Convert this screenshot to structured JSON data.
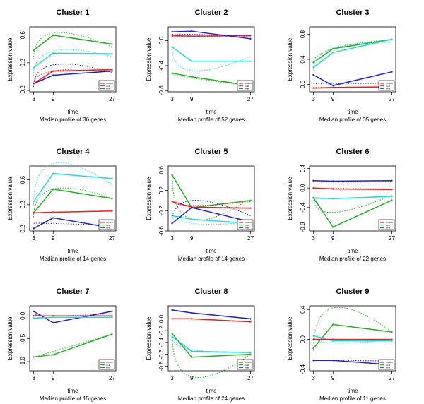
{
  "figure": {
    "x_axis_title": "time",
    "y_axis_title": "Expression value",
    "caption_prefix": "Median profile of",
    "caption_suffix": "genes",
    "legend_labels": [
      "Control",
      "Cold",
      "Heat"
    ],
    "colors": {
      "red": "#ee1c1c",
      "green": "#22b022",
      "cyan": "#22d8d8",
      "blue": "#2222cc"
    }
  },
  "chart_data": [
    {
      "type": "line",
      "title": "Cluster 1",
      "genes": 36,
      "x": [
        3,
        9,
        27
      ],
      "xlabel": "time",
      "ylabel": "Expression value",
      "ylim": [
        -0.22,
        0.72
      ],
      "yticks": [
        -0.2,
        0.2,
        0.6
      ],
      "ytick_labels": [
        "-0.2",
        "0.2",
        "0.6"
      ],
      "series": [
        {
          "color": "green",
          "values": [
            0.38,
            0.6,
            0.47
          ],
          "fit": [
            0.25,
            0.63,
            0.43
          ]
        },
        {
          "color": "cyan",
          "values": [
            0.13,
            0.34,
            0.33
          ],
          "fit": [
            0.02,
            0.37,
            0.29
          ]
        },
        {
          "color": "blue",
          "values": [
            -0.1,
            0.02,
            0.08
          ],
          "fit": [
            -0.15,
            0.17,
            0.06
          ]
        },
        {
          "color": "red",
          "values": [
            -0.1,
            0.08,
            0.1
          ],
          "fit": [
            -0.1,
            0.08,
            0.1
          ]
        }
      ]
    },
    {
      "type": "line",
      "title": "Cluster 2",
      "genes": 52,
      "x": [
        3,
        9,
        27
      ],
      "xlabel": "time",
      "ylabel": "Expression value",
      "ylim": [
        -0.82,
        0.22
      ],
      "yticks": [
        -0.8,
        -0.4,
        0.0
      ],
      "ytick_labels": [
        "-0.8",
        "-0.4",
        "0.0"
      ],
      "series": [
        {
          "color": "red",
          "values": [
            0.08,
            0.07,
            0.08
          ],
          "fit": [
            0.07,
            0.07,
            0.07
          ]
        },
        {
          "color": "blue",
          "values": [
            0.14,
            0.15,
            0.03
          ],
          "fit": [
            0.1,
            0.1,
            0.07
          ]
        },
        {
          "color": "cyan",
          "values": [
            -0.1,
            -0.33,
            -0.33
          ],
          "fit": [
            -0.1,
            -0.48,
            -0.25
          ]
        },
        {
          "color": "green",
          "values": [
            -0.52,
            -0.58,
            -0.72
          ],
          "fit": [
            -0.53,
            -0.6,
            -0.72
          ]
        }
      ]
    },
    {
      "type": "line",
      "title": "Cluster 3",
      "genes": 35,
      "x": [
        3,
        9,
        27
      ],
      "xlabel": "time",
      "ylabel": "Expression value",
      "ylim": [
        -0.12,
        0.92
      ],
      "yticks": [
        0.0,
        0.4,
        0.8
      ],
      "ytick_labels": [
        "0.0",
        "0.4",
        "0.8"
      ],
      "series": [
        {
          "color": "green",
          "values": [
            0.35,
            0.57,
            0.72
          ],
          "fit": [
            0.35,
            0.57,
            0.72
          ]
        },
        {
          "color": "cyan",
          "values": [
            0.27,
            0.51,
            0.72
          ],
          "fit": [
            0.22,
            0.58,
            0.67
          ]
        },
        {
          "color": "blue",
          "values": [
            0.15,
            -0.02,
            0.2
          ],
          "fit": [
            0.01,
            0.01,
            0.02
          ]
        },
        {
          "color": "red",
          "values": [
            -0.06,
            -0.05,
            -0.04
          ],
          "fit": [
            -0.05,
            -0.05,
            -0.05
          ]
        }
      ]
    },
    {
      "type": "line",
      "title": "Cluster 4",
      "genes": 14,
      "x": [
        3,
        9,
        27
      ],
      "xlabel": "time",
      "ylabel": "Expression value",
      "ylim": [
        -0.22,
        0.82
      ],
      "yticks": [
        -0.2,
        0.2,
        0.6
      ],
      "ytick_labels": [
        "-0.2",
        "0.2",
        "0.6"
      ],
      "series": [
        {
          "color": "cyan",
          "values": [
            0.25,
            0.7,
            0.62
          ],
          "fit": [
            0.2,
            0.86,
            0.52
          ]
        },
        {
          "color": "green",
          "values": [
            0.07,
            0.45,
            0.3
          ],
          "fit": [
            0.0,
            0.45,
            0.3
          ]
        },
        {
          "color": "red",
          "values": [
            0.07,
            0.08,
            0.1
          ],
          "fit": [
            0.07,
            0.08,
            0.1
          ]
        },
        {
          "color": "blue",
          "values": [
            -0.18,
            -0.01,
            -0.17
          ],
          "fit": [
            -0.1,
            -0.1,
            -0.13
          ]
        }
      ]
    },
    {
      "type": "line",
      "title": "Cluster 5",
      "genes": 14,
      "x": [
        3,
        9,
        27
      ],
      "xlabel": "time",
      "ylabel": "Expression value",
      "ylim": [
        -0.6,
        0.68
      ],
      "yticks": [
        -0.6,
        -0.2,
        0.2,
        0.6
      ],
      "ytick_labels": [
        "-0.6",
        "-0.2",
        "0.2",
        "0.6"
      ],
      "series": [
        {
          "color": "green",
          "values": [
            0.5,
            -0.14,
            0.0
          ],
          "fit": [
            0.5,
            -0.37,
            0.05
          ]
        },
        {
          "color": "red",
          "values": [
            -0.02,
            -0.13,
            -0.15
          ],
          "fit": [
            0.0,
            -0.1,
            -0.02
          ]
        },
        {
          "color": "cyan",
          "values": [
            -0.3,
            -0.37,
            -0.45
          ],
          "fit": [
            -0.2,
            -0.45,
            -0.42
          ]
        },
        {
          "color": "blue",
          "values": [
            -0.45,
            -0.14,
            -0.42
          ],
          "fit": [
            -0.45,
            0.0,
            -0.3
          ]
        }
      ]
    },
    {
      "type": "line",
      "title": "Cluster 6",
      "genes": 22,
      "x": [
        3,
        9,
        27
      ],
      "xlabel": "time",
      "ylabel": "Expression value",
      "ylim": [
        -0.88,
        0.45
      ],
      "yticks": [
        -0.8,
        -0.4,
        0.0,
        0.4
      ],
      "ytick_labels": [
        "-0.8",
        "-0.4",
        "0.0",
        "0.4"
      ],
      "series": [
        {
          "color": "blue",
          "values": [
            0.15,
            0.14,
            0.15
          ],
          "fit": [
            0.13,
            0.12,
            0.13
          ]
        },
        {
          "color": "red",
          "values": [
            0.0,
            -0.02,
            -0.03
          ],
          "fit": [
            -0.01,
            -0.01,
            -0.02
          ]
        },
        {
          "color": "cyan",
          "values": [
            -0.2,
            -0.22,
            -0.17
          ],
          "fit": [
            -0.2,
            -0.22,
            -0.17
          ]
        },
        {
          "color": "green",
          "values": [
            -0.2,
            -0.8,
            -0.25
          ],
          "fit": [
            -0.2,
            -0.5,
            -0.15
          ]
        }
      ]
    },
    {
      "type": "line",
      "title": "Cluster 7",
      "genes": 15,
      "x": [
        3,
        9,
        27
      ],
      "xlabel": "time",
      "ylabel": "Expression value",
      "ylim": [
        -1.2,
        0.22
      ],
      "yticks": [
        -1.0,
        -0.5,
        0.0
      ],
      "ytick_labels": [
        "-1.0",
        "-0.5",
        "0.0"
      ],
      "series": [
        {
          "color": "blue",
          "values": [
            0.1,
            -0.15,
            0.1
          ],
          "fit": [
            0.05,
            0.0,
            0.05
          ]
        },
        {
          "color": "red",
          "values": [
            0.0,
            0.0,
            0.0
          ],
          "fit": [
            0.0,
            0.0,
            0.0
          ]
        },
        {
          "color": "cyan",
          "values": [
            -0.05,
            -0.03,
            -0.03
          ],
          "fit": [
            -0.05,
            -0.03,
            -0.03
          ]
        },
        {
          "color": "green",
          "values": [
            -0.9,
            -0.85,
            -0.4
          ],
          "fit": [
            -0.9,
            -0.78,
            -0.4
          ]
        }
      ]
    },
    {
      "type": "line",
      "title": "Cluster 8",
      "genes": 24,
      "x": [
        3,
        9,
        27
      ],
      "xlabel": "time",
      "ylabel": "Expression value",
      "ylim": [
        -0.88,
        0.22
      ],
      "yticks": [
        -0.8,
        -0.6,
        -0.4,
        -0.2,
        0.0
      ],
      "ytick_labels": [
        "-0.8",
        "-0.6",
        "-0.4",
        "-0.2",
        "0.0"
      ],
      "series": [
        {
          "color": "blue",
          "values": [
            0.15,
            0.1,
            0.0
          ],
          "fit": [
            0.15,
            0.1,
            0.0
          ]
        },
        {
          "color": "red",
          "values": [
            0.0,
            0.0,
            -0.05
          ],
          "fit": [
            0.0,
            0.0,
            -0.05
          ]
        },
        {
          "color": "cyan",
          "values": [
            -0.3,
            -0.55,
            -0.57
          ],
          "fit": [
            -0.32,
            -0.52,
            -0.57
          ]
        },
        {
          "color": "green",
          "values": [
            -0.25,
            -0.65,
            -0.6
          ],
          "fit": [
            -0.25,
            -0.98,
            -0.6
          ]
        }
      ]
    },
    {
      "type": "line",
      "title": "Cluster 9",
      "genes": 11,
      "x": [
        3,
        9,
        27
      ],
      "xlabel": "time",
      "ylabel": "Expression value",
      "ylim": [
        -0.42,
        0.45
      ],
      "yticks": [
        -0.4,
        0.0,
        0.4
      ],
      "ytick_labels": [
        "-0.4",
        "0.0",
        "0.4"
      ],
      "series": [
        {
          "color": "green",
          "values": [
            -0.12,
            0.2,
            0.1
          ],
          "fit": [
            -0.15,
            0.42,
            0.1
          ]
        },
        {
          "color": "cyan",
          "values": [
            0.05,
            -0.02,
            -0.02
          ],
          "fit": [
            0.05,
            -0.05,
            0.0
          ]
        },
        {
          "color": "red",
          "values": [
            0.0,
            0.0,
            0.0
          ],
          "fit": [
            0.0,
            0.0,
            0.0
          ]
        },
        {
          "color": "blue",
          "values": [
            -0.28,
            -0.28,
            -0.34
          ],
          "fit": [
            -0.28,
            -0.28,
            -0.29
          ]
        }
      ]
    }
  ]
}
